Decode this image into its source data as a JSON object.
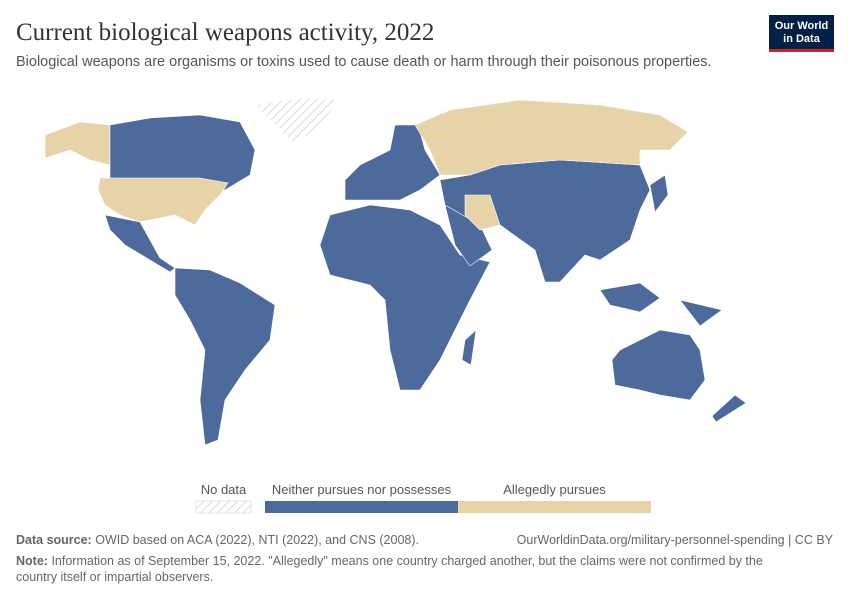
{
  "header": {
    "title": "Current biological weapons activity, 2022",
    "subtitle": "Biological weapons are organisms or toxins used to cause death or harm through their poisonous properties.",
    "logo": [
      "Our World",
      "in Data"
    ]
  },
  "legend": {
    "items": [
      {
        "label": "No data",
        "pattern": "hatched"
      },
      {
        "label": "Neither pursues nor possesses",
        "color": "#4c6a9c"
      },
      {
        "label": "Allegedly pursues",
        "color": "#e6d4a8"
      }
    ]
  },
  "footer": {
    "source_label": "Data source:",
    "source": "OWID based on ACA (2022), NTI (2022), and CNS (2008).",
    "url": "OurWorldinData.org/military-personnel-spending | CC BY",
    "note_label": "Note:",
    "note": "Information as of September 15, 2022. \"Allegedly\" means one country charged another, but the claims were not confirmed by the",
    "note_cont": "country itself or impartial observers."
  }
}
